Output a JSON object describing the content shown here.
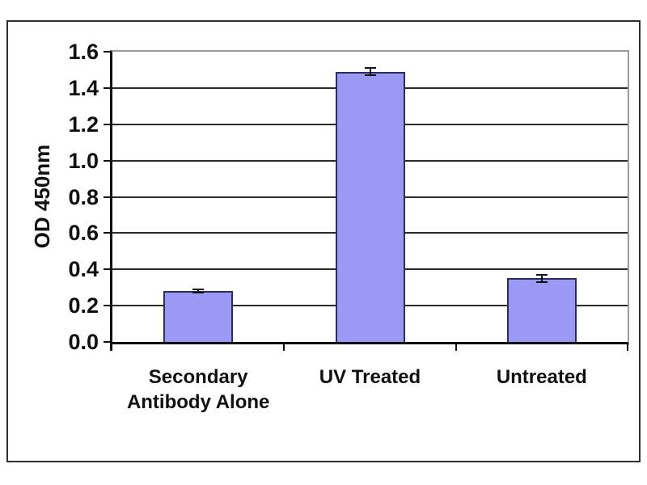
{
  "chart_data": {
    "type": "bar",
    "title": "",
    "ylabel": "OD 450nm",
    "xlabel": "",
    "categories": [
      "Secondary Antibody Alone",
      "UV Treated",
      "Untreated"
    ],
    "values": [
      0.28,
      1.49,
      0.35
    ],
    "errors": [
      0.01,
      0.02,
      0.02
    ],
    "ylim": [
      0,
      1.6
    ],
    "ytick_step": 0.2,
    "ytick_labels": [
      "0.0",
      "0.2",
      "0.4",
      "0.6",
      "0.8",
      "1.0",
      "1.2",
      "1.4",
      "1.6"
    ],
    "grid": true,
    "legend": false,
    "colors": {
      "bar_fill": "#9a99f6",
      "bar_border": "#2d2d5c",
      "gridline": "#2a2a2a",
      "plot_border": "#9a9a9a",
      "axis": "#101010",
      "error_bar": "#101010",
      "frame_border": "#2e2e2e",
      "background": "#ffffff",
      "text": "#101010"
    }
  }
}
